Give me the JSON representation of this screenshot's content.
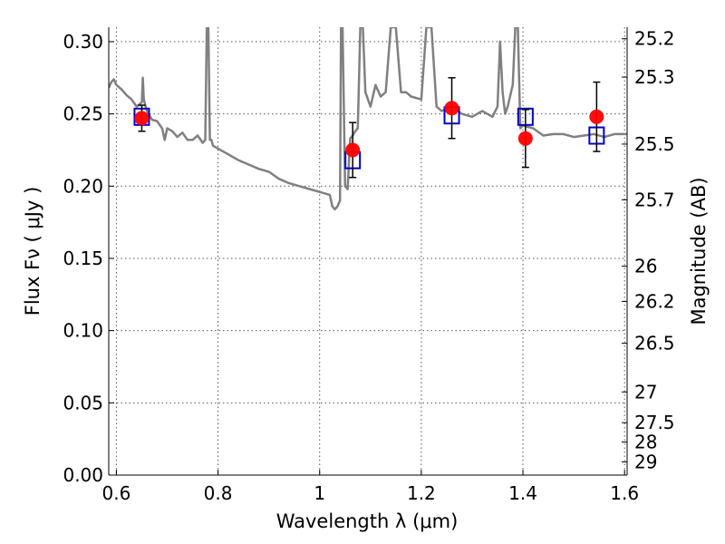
{
  "chart_data": {
    "type": "scatter",
    "xlabel": "Wavelength  λ (μm)",
    "ylabel": "Flux  Fν  ( μJy )",
    "ylabel_right": "Magnitude (AB)",
    "xlim": [
      0.585,
      1.605
    ],
    "ylim": [
      0.0,
      0.31
    ],
    "x_ticks": [
      0.6,
      0.8,
      1.0,
      1.2,
      1.4,
      1.6
    ],
    "x_tick_labels": [
      "0.6",
      "0.8",
      "1",
      "1.2",
      "1.4",
      "1.6"
    ],
    "y_ticks": [
      0.0,
      0.05,
      0.1,
      0.15,
      0.2,
      0.25,
      0.3
    ],
    "y_tick_labels": [
      "0.00",
      "0.05",
      "0.10",
      "0.15",
      "0.20",
      "0.25",
      "0.30"
    ],
    "right_axis_ticks": [
      "25.2",
      "25.3",
      "25.5",
      "25.7",
      "26",
      "26.2",
      "26.5",
      "27",
      "27.5",
      "28",
      "29"
    ],
    "grid": true,
    "series": [
      {
        "kind": "line",
        "color": "#808080",
        "x": [
          0.585,
          0.59,
          0.595,
          0.6,
          0.61,
          0.62,
          0.63,
          0.64,
          0.65,
          0.652,
          0.654,
          0.66,
          0.67,
          0.68,
          0.69,
          0.695,
          0.7,
          0.71,
          0.72,
          0.73,
          0.74,
          0.75,
          0.76,
          0.77,
          0.775,
          0.778,
          0.781,
          0.784,
          0.787,
          0.79,
          0.8,
          0.82,
          0.84,
          0.86,
          0.88,
          0.9,
          0.92,
          0.94,
          0.96,
          0.98,
          1.0,
          1.01,
          1.02,
          1.025,
          1.03,
          1.035,
          1.04,
          1.042,
          1.045,
          1.05,
          1.055,
          1.06,
          1.065,
          1.07,
          1.075,
          1.08,
          1.085,
          1.09,
          1.1,
          1.11,
          1.12,
          1.13,
          1.14,
          1.145,
          1.15,
          1.16,
          1.17,
          1.18,
          1.2,
          1.21,
          1.22,
          1.23,
          1.24,
          1.26,
          1.28,
          1.3,
          1.32,
          1.34,
          1.35,
          1.355,
          1.36,
          1.365,
          1.37,
          1.38,
          1.385,
          1.39,
          1.395,
          1.4,
          1.42,
          1.44,
          1.46,
          1.48,
          1.5,
          1.52,
          1.54,
          1.56,
          1.58,
          1.6,
          1.605
        ],
        "y": [
          0.268,
          0.272,
          0.274,
          0.27,
          0.267,
          0.263,
          0.26,
          0.255,
          0.258,
          0.275,
          0.26,
          0.252,
          0.246,
          0.245,
          0.24,
          0.232,
          0.24,
          0.238,
          0.234,
          0.237,
          0.232,
          0.232,
          0.235,
          0.23,
          0.232,
          0.31,
          0.31,
          0.232,
          0.232,
          0.228,
          0.226,
          0.222,
          0.218,
          0.215,
          0.212,
          0.21,
          0.205,
          0.202,
          0.2,
          0.198,
          0.196,
          0.195,
          0.194,
          0.186,
          0.184,
          0.186,
          0.19,
          0.31,
          0.31,
          0.2,
          0.198,
          0.233,
          0.235,
          0.238,
          0.24,
          0.31,
          0.31,
          0.265,
          0.255,
          0.27,
          0.262,
          0.265,
          0.31,
          0.31,
          0.31,
          0.265,
          0.265,
          0.262,
          0.26,
          0.31,
          0.31,
          0.255,
          0.252,
          0.255,
          0.25,
          0.248,
          0.252,
          0.248,
          0.255,
          0.3,
          0.265,
          0.25,
          0.255,
          0.27,
          0.31,
          0.31,
          0.24,
          0.242,
          0.24,
          0.235,
          0.236,
          0.236,
          0.234,
          0.235,
          0.236,
          0.234,
          0.236,
          0.236,
          0.236
        ]
      },
      {
        "kind": "open-square",
        "color": "#0000cc",
        "x": [
          0.65,
          1.065,
          1.26,
          1.405,
          1.545
        ],
        "y": [
          0.248,
          0.218,
          0.249,
          0.248,
          0.235
        ]
      },
      {
        "kind": "filled-circle-with-errorbars",
        "color": "#ff0000",
        "x": [
          0.65,
          1.065,
          1.26,
          1.405,
          1.545
        ],
        "y": [
          0.247,
          0.225,
          0.254,
          0.233,
          0.248
        ],
        "err": [
          0.009,
          0.019,
          0.021,
          0.02,
          0.024
        ]
      }
    ]
  }
}
